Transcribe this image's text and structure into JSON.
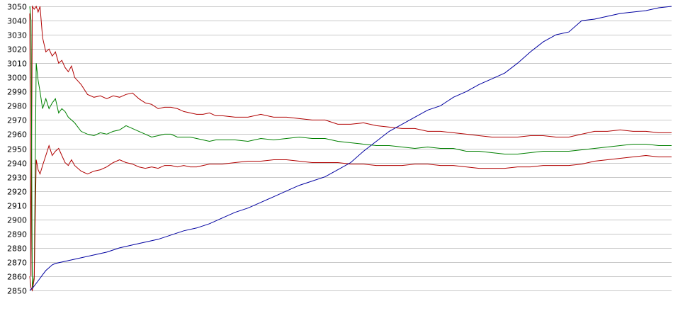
{
  "chart_data": {
    "type": "line",
    "title": "",
    "xlabel": "",
    "ylabel": "",
    "ylim": [
      2850,
      3050
    ],
    "xlim": [
      0,
      100
    ],
    "grid": true,
    "legend": "none",
    "yticks": [
      2850,
      2860,
      2870,
      2880,
      2890,
      2900,
      2910,
      2920,
      2930,
      2940,
      2950,
      2960,
      2970,
      2980,
      2990,
      3000,
      3010,
      3020,
      3030,
      3040,
      3050
    ],
    "colors": {
      "grid": "#c8c8c8",
      "upper_band": "#b00000",
      "middle_line": "#008000",
      "lower_band": "#b00000",
      "rising_line": "#0000a0"
    },
    "series": [
      {
        "key": "upper_band",
        "x": [
          0,
          0.2,
          0.4,
          0.7,
          1,
          1.3,
          1.6,
          2,
          2.5,
          3,
          3.5,
          4,
          4.5,
          5,
          5.5,
          6,
          6.5,
          7,
          8,
          9,
          10,
          11,
          12,
          13,
          14,
          15,
          16,
          17,
          18,
          19,
          20,
          21,
          22,
          23,
          24,
          25,
          26,
          27,
          28,
          29,
          30,
          32,
          34,
          36,
          38,
          40,
          42,
          44,
          46,
          48,
          50,
          52,
          54,
          56,
          58,
          60,
          62,
          64,
          66,
          68,
          70,
          72,
          74,
          76,
          78,
          80,
          82,
          84,
          86,
          88,
          90,
          92,
          94,
          96,
          98,
          100
        ],
        "y": [
          3045,
          2860,
          3050,
          3048,
          3050,
          3046,
          3050,
          3028,
          3018,
          3020,
          3015,
          3018,
          3010,
          3012,
          3007,
          3004,
          3008,
          3000,
          2995,
          2988,
          2986,
          2987,
          2985,
          2987,
          2986,
          2988,
          2989,
          2985,
          2982,
          2981,
          2978,
          2979,
          2979,
          2978,
          2976,
          2975,
          2974,
          2974,
          2975,
          2973,
          2973,
          2972,
          2972,
          2974,
          2972,
          2972,
          2971,
          2970,
          2970,
          2967,
          2967,
          2968,
          2966,
          2965,
          2964,
          2964,
          2962,
          2962,
          2961,
          2960,
          2959,
          2958,
          2958,
          2958,
          2959,
          2959,
          2958,
          2958,
          2960,
          2962,
          2962,
          2963,
          2962,
          2962,
          2961,
          2961
        ]
      },
      {
        "key": "middle_line",
        "x": [
          0,
          0.2,
          0.4,
          0.7,
          1,
          1.3,
          1.6,
          2,
          2.5,
          3,
          3.5,
          4,
          4.5,
          5,
          5.5,
          6,
          6.5,
          7,
          8,
          9,
          10,
          11,
          12,
          13,
          14,
          15,
          16,
          17,
          18,
          19,
          20,
          21,
          22,
          23,
          24,
          25,
          26,
          27,
          28,
          29,
          30,
          32,
          34,
          36,
          38,
          40,
          42,
          44,
          46,
          48,
          50,
          52,
          54,
          56,
          58,
          60,
          62,
          64,
          66,
          68,
          70,
          72,
          74,
          76,
          78,
          80,
          82,
          84,
          86,
          88,
          90,
          92,
          94,
          96,
          98,
          100
        ],
        "y": [
          3050,
          3040,
          2852,
          2860,
          3010,
          2998,
          2990,
          2978,
          2985,
          2978,
          2982,
          2985,
          2975,
          2978,
          2976,
          2972,
          2970,
          2968,
          2962,
          2960,
          2959,
          2961,
          2960,
          2962,
          2963,
          2966,
          2964,
          2962,
          2960,
          2958,
          2959,
          2960,
          2960,
          2958,
          2958,
          2958,
          2957,
          2956,
          2955,
          2956,
          2956,
          2956,
          2955,
          2957,
          2956,
          2957,
          2958,
          2957,
          2957,
          2955,
          2954,
          2953,
          2952,
          2952,
          2951,
          2950,
          2951,
          2950,
          2950,
          2948,
          2948,
          2947,
          2946,
          2946,
          2947,
          2948,
          2948,
          2948,
          2949,
          2950,
          2951,
          2952,
          2953,
          2953,
          2952,
          2952
        ]
      },
      {
        "key": "lower_band",
        "x": [
          0,
          0.2,
          0.4,
          0.7,
          1,
          1.3,
          1.6,
          2,
          2.5,
          3,
          3.5,
          4,
          4.5,
          5,
          5.5,
          6,
          6.5,
          7,
          8,
          9,
          10,
          11,
          12,
          13,
          14,
          15,
          16,
          17,
          18,
          19,
          20,
          21,
          22,
          23,
          24,
          25,
          26,
          27,
          28,
          29,
          30,
          32,
          34,
          36,
          38,
          40,
          42,
          44,
          46,
          48,
          50,
          52,
          54,
          56,
          58,
          60,
          62,
          64,
          66,
          68,
          70,
          72,
          74,
          76,
          78,
          80,
          82,
          84,
          86,
          88,
          90,
          92,
          94,
          96,
          98,
          100
        ],
        "y": [
          2860,
          2852,
          2850,
          2858,
          2942,
          2935,
          2932,
          2938,
          2945,
          2952,
          2945,
          2948,
          2950,
          2945,
          2940,
          2938,
          2942,
          2938,
          2934,
          2932,
          2934,
          2935,
          2937,
          2940,
          2942,
          2940,
          2939,
          2937,
          2936,
          2937,
          2936,
          2938,
          2938,
          2937,
          2938,
          2937,
          2937,
          2938,
          2939,
          2939,
          2939,
          2940,
          2941,
          2941,
          2942,
          2942,
          2941,
          2940,
          2940,
          2940,
          2939,
          2939,
          2938,
          2938,
          2938,
          2939,
          2939,
          2938,
          2938,
          2937,
          2936,
          2936,
          2936,
          2937,
          2937,
          2938,
          2938,
          2938,
          2939,
          2941,
          2942,
          2943,
          2944,
          2945,
          2944,
          2944
        ]
      },
      {
        "key": "rising_line",
        "x": [
          0,
          0.5,
          1,
          1.5,
          2,
          2.5,
          3,
          3.5,
          4,
          5,
          6,
          8,
          10,
          12,
          14,
          16,
          18,
          20,
          22,
          24,
          26,
          28,
          30,
          32,
          34,
          36,
          38,
          40,
          42,
          44,
          46,
          48,
          50,
          52,
          54,
          56,
          58,
          60,
          62,
          64,
          66,
          68,
          70,
          72,
          74,
          76,
          78,
          80,
          82,
          84,
          86,
          88,
          89,
          90,
          92,
          94,
          96,
          98,
          100
        ],
        "y": [
          2850,
          2852,
          2855,
          2858,
          2861,
          2864,
          2866,
          2868,
          2869,
          2870,
          2871,
          2873,
          2875,
          2877,
          2880,
          2882,
          2884,
          2886,
          2889,
          2892,
          2894,
          2897,
          2901,
          2905,
          2908,
          2912,
          2916,
          2920,
          2924,
          2927,
          2930,
          2935,
          2940,
          2948,
          2955,
          2962,
          2967,
          2972,
          2977,
          2980,
          2986,
          2990,
          2995,
          2999,
          3003,
          3010,
          3018,
          3025,
          3030,
          3032,
          3040,
          3041,
          3042,
          3043,
          3045,
          3046,
          3047,
          3049,
          3050
        ]
      }
    ]
  }
}
